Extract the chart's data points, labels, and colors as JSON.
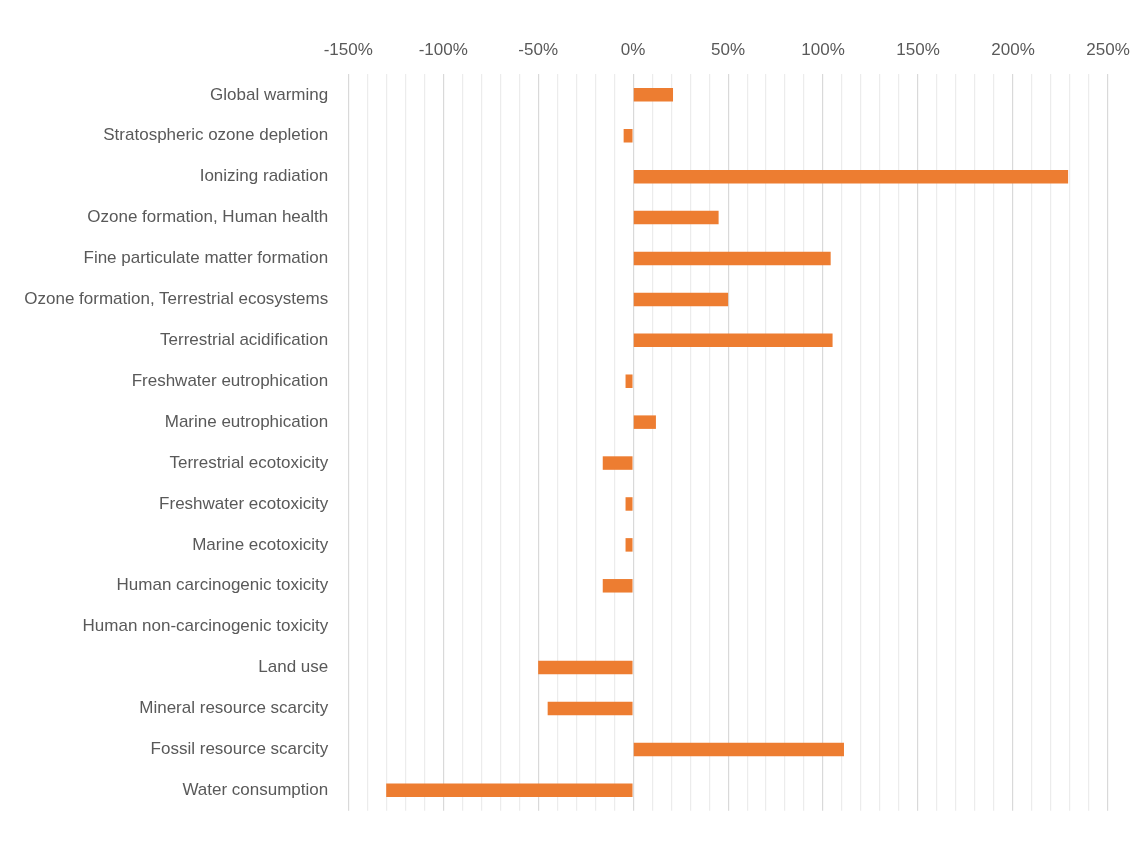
{
  "chart_data": {
    "type": "bar",
    "orientation": "horizontal",
    "categories": [
      "Global warming",
      "Stratospheric ozone depletion",
      "Ionizing radiation",
      "Ozone formation, Human health",
      "Fine particulate matter formation",
      "Ozone formation, Terrestrial ecosystems",
      "Terrestrial acidification",
      "Freshwater eutrophication",
      "Marine eutrophication",
      "Terrestrial ecotoxicity",
      "Freshwater ecotoxicity",
      "Marine ecotoxicity",
      "Human carcinogenic toxicity",
      "Human non-carcinogenic toxicity",
      "Land use",
      "Mineral resource scarcity",
      "Fossil resource scarcity",
      "Water consumption"
    ],
    "values": [
      21,
      -5,
      229,
      45,
      104,
      50,
      105,
      -4,
      12,
      -16,
      -4,
      -4,
      -16,
      null,
      -50,
      -45,
      111,
      -130
    ],
    "color": "#ed7d31",
    "xlim": [
      -150,
      250
    ],
    "xticks": [
      {
        "value": -150,
        "label": "-150%"
      },
      {
        "value": -140,
        "label": null
      },
      {
        "value": -130,
        "label": null
      },
      {
        "value": -120,
        "label": null
      },
      {
        "value": -110,
        "label": null
      },
      {
        "value": -100,
        "label": "-100%"
      },
      {
        "value": -90,
        "label": null
      },
      {
        "value": -80,
        "label": null
      },
      {
        "value": -70,
        "label": null
      },
      {
        "value": -60,
        "label": null
      },
      {
        "value": -50,
        "label": "-50%"
      },
      {
        "value": -40,
        "label": null
      },
      {
        "value": -30,
        "label": null
      },
      {
        "value": -20,
        "label": null
      },
      {
        "value": -10,
        "label": null
      },
      {
        "value": 0,
        "label": "0%"
      },
      {
        "value": 10,
        "label": null
      },
      {
        "value": 20,
        "label": null
      },
      {
        "value": 30,
        "label": null
      },
      {
        "value": 40,
        "label": null
      },
      {
        "value": 50,
        "label": "50%"
      },
      {
        "value": 60,
        "label": null
      },
      {
        "value": 70,
        "label": null
      },
      {
        "value": 80,
        "label": null
      },
      {
        "value": 90,
        "label": null
      },
      {
        "value": 100,
        "label": "100%"
      },
      {
        "value": 110,
        "label": null
      },
      {
        "value": 120,
        "label": null
      },
      {
        "value": 130,
        "label": null
      },
      {
        "value": 140,
        "label": null
      },
      {
        "value": 150,
        "label": "150%"
      },
      {
        "value": 160,
        "label": null
      },
      {
        "value": 170,
        "label": null
      },
      {
        "value": 180,
        "label": null
      },
      {
        "value": 190,
        "label": null
      },
      {
        "value": 200,
        "label": "200%"
      },
      {
        "value": 210,
        "label": null
      },
      {
        "value": 220,
        "label": null
      },
      {
        "value": 230,
        "label": null
      },
      {
        "value": 240,
        "label": null
      },
      {
        "value": 250,
        "label": "250%"
      }
    ],
    "grid": "x",
    "legend": false
  }
}
